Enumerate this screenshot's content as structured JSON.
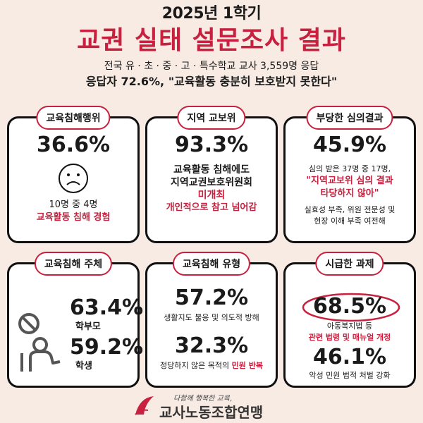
{
  "header": {
    "semester": "2025년 1학기",
    "title": "교권 실태 설문조사 결과",
    "subtitle": "전국 유 · 초 · 중 · 고 · 특수학교 교사 3,559명 응답",
    "headline": "응답자 72.6%, \"교육활동 충분히 보호받지 못한다\""
  },
  "cards": {
    "c1": {
      "tag": "교육침해행위",
      "value": "36.6%",
      "line1": "10명 중 4명",
      "line2": "교육활동 침해 경험",
      "icon": "sad-face-icon"
    },
    "c2": {
      "tag": "지역 교보위",
      "value": "93.3%",
      "line1": "교육활동 침해에도",
      "line2": "지역교권보호위원회",
      "line3": "미개최",
      "line4": "개인적으로 참고 넘어감"
    },
    "c3": {
      "tag": "부당한 심의결과",
      "value": "45.9%",
      "line1": "심의 받은 37명 중 17명,",
      "line2": "\"지역교보위 심의 결과",
      "line3": "타당하지 않아\"",
      "line4": "실효성 부족, 위원 전문성 및",
      "line5": "현장 이해 부족 여전해"
    },
    "c4": {
      "tag": "교육침해 주체",
      "v1": "63.4%",
      "l1": "학부모",
      "v2": "59.2%",
      "l2": "학생",
      "icon": "forbidden-person-icon"
    },
    "c5": {
      "tag": "교육침해 유형",
      "v1": "57.2%",
      "l1": "생활지도 불응 및 의도적 방해",
      "v2": "32.3%",
      "l2a": "정당하지 않은 목적의 ",
      "l2b": "민원 반복"
    },
    "c6": {
      "tag": "시급한 과제",
      "v1": "68.5%",
      "l1a": "아동복지법 등",
      "l1b": "관련 법령 및 매뉴얼 개정",
      "v2": "46.1%",
      "l2": "악성 민원 법적 처벌 강화"
    }
  },
  "footer": {
    "slogan": "다함께 행복한 교육,",
    "org": "교사노동조합연맹"
  },
  "colors": {
    "accent": "#c8203e",
    "background": "#f7ebe4"
  }
}
